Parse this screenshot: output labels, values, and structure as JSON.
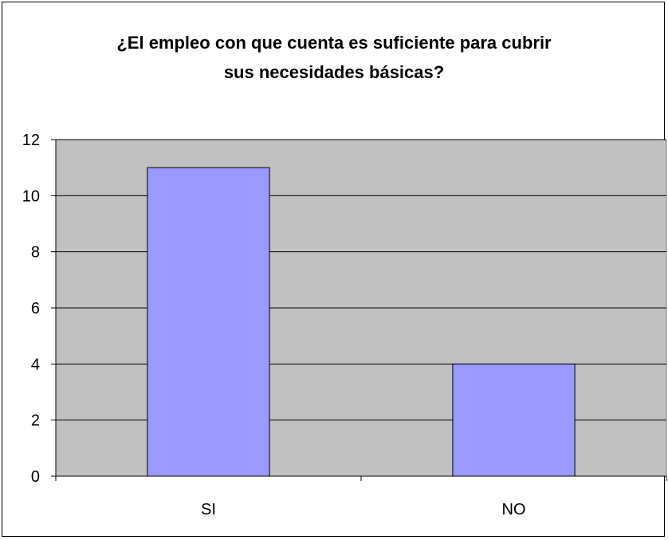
{
  "chart_data": {
    "type": "bar",
    "title_lines": [
      "¿El empleo con que cuenta es suficiente para cubrir",
      "sus necesidades básicas?"
    ],
    "categories": [
      "SI",
      "NO"
    ],
    "values": [
      11,
      4
    ],
    "yticks": [
      "0",
      "2",
      "4",
      "6",
      "8",
      "10",
      "12"
    ],
    "ylim": [
      0,
      12
    ],
    "grid": true,
    "colors": {
      "bar": "#9999ff",
      "plot_bg": "#c0c0c0",
      "grid": "#000000"
    }
  }
}
